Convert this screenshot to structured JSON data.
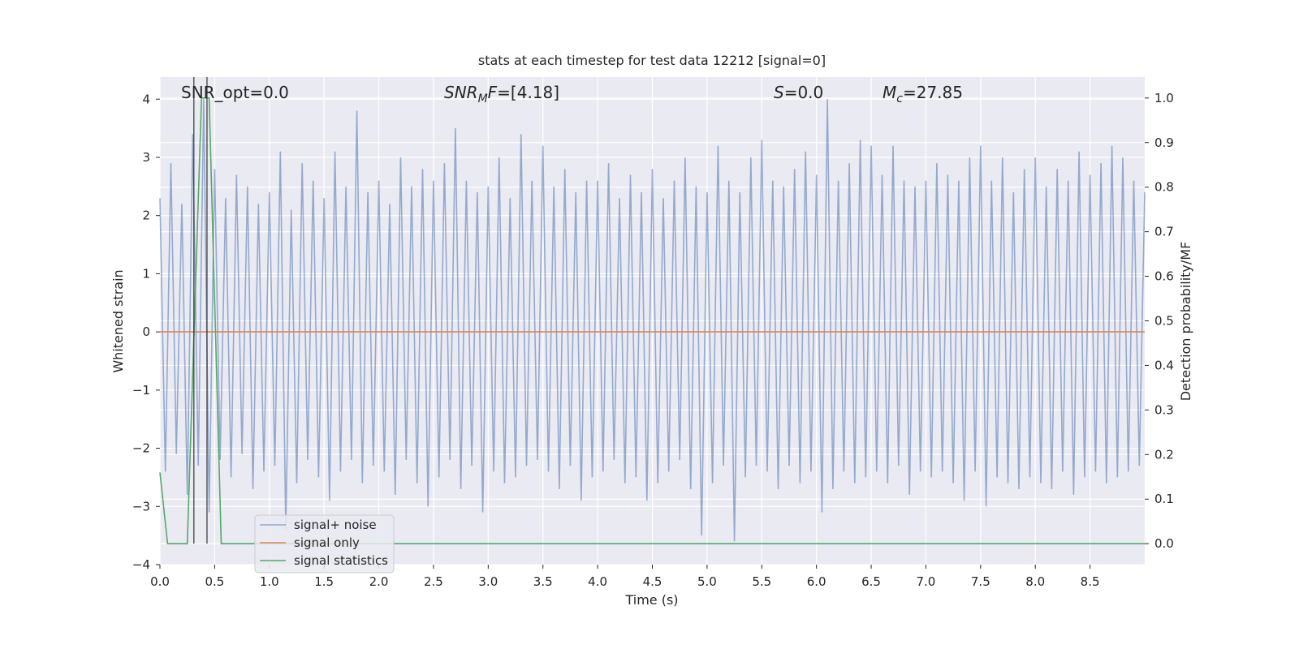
{
  "chart_data": {
    "type": "line",
    "title": "stats at each timestep for test data 12212 [signal=0]",
    "xlabel": "Time (s)",
    "ylabel": "Whitened strain",
    "y2label": "Detection probability/MF",
    "xlim": [
      0,
      9.0
    ],
    "ylim": [
      -4.0,
      4.38
    ],
    "y2lim": [
      -0.047,
      1.047
    ],
    "xticks": [
      {
        "value": 0,
        "label": "0.0"
      },
      {
        "value": 0.5,
        "label": "0.5"
      },
      {
        "value": 1,
        "label": "1.0"
      },
      {
        "value": 1.5,
        "label": "1.5"
      },
      {
        "value": 2,
        "label": "2.0"
      },
      {
        "value": 2.5,
        "label": "2.5"
      },
      {
        "value": 3,
        "label": "3.0"
      },
      {
        "value": 3.5,
        "label": "3.5"
      },
      {
        "value": 4,
        "label": "4.0"
      },
      {
        "value": 4.5,
        "label": "4.5"
      },
      {
        "value": 5,
        "label": "5.0"
      },
      {
        "value": 5.5,
        "label": "5.5"
      },
      {
        "value": 6,
        "label": "6.0"
      },
      {
        "value": 6.5,
        "label": "6.5"
      },
      {
        "value": 7,
        "label": "7.0"
      },
      {
        "value": 7.5,
        "label": "7.5"
      },
      {
        "value": 8,
        "label": "8.0"
      },
      {
        "value": 8.5,
        "label": "8.5"
      }
    ],
    "yticks": [
      {
        "value": -4,
        "label": "−4"
      },
      {
        "value": -3,
        "label": "−3"
      },
      {
        "value": -2,
        "label": "−2"
      },
      {
        "value": -1,
        "label": "−1"
      },
      0,
      1,
      2,
      3,
      4
    ],
    "y2ticks": [
      {
        "value": 0,
        "label": "0.0"
      },
      0.1,
      0.2,
      0.3,
      0.4,
      0.5,
      0.6,
      0.7,
      0.8,
      0.9,
      {
        "value": 1,
        "label": "1.0"
      }
    ],
    "grid": true,
    "legend": "lower left",
    "series": [
      {
        "name": "signal+ noise",
        "color": "#4c72b0",
        "x": [
          0,
          0.05,
          0.1,
          0.15,
          0.2,
          0.25,
          0.3,
          0.35,
          0.4,
          0.45,
          0.5,
          0.55,
          0.6,
          0.65,
          0.7,
          0.75,
          0.8,
          0.85,
          0.9,
          0.95,
          1,
          1.05,
          1.1,
          1.15,
          1.2,
          1.25,
          1.3,
          1.35,
          1.4,
          1.45,
          1.5,
          1.55,
          1.6,
          1.65,
          1.7,
          1.75,
          1.8,
          1.85,
          1.9,
          1.95,
          2,
          2.05,
          2.1,
          2.15,
          2.2,
          2.25,
          2.3,
          2.35,
          2.4,
          2.45,
          2.5,
          2.55,
          2.6,
          2.65,
          2.7,
          2.75,
          2.8,
          2.85,
          2.9,
          2.95,
          3,
          3.05,
          3.1,
          3.15,
          3.2,
          3.25,
          3.3,
          3.35,
          3.4,
          3.45,
          3.5,
          3.55,
          3.6,
          3.65,
          3.7,
          3.75,
          3.8,
          3.85,
          3.9,
          3.95,
          4,
          4.05,
          4.1,
          4.15,
          4.2,
          4.25,
          4.3,
          4.35,
          4.4,
          4.45,
          4.5,
          4.55,
          4.6,
          4.65,
          4.7,
          4.75,
          4.8,
          4.85,
          4.9,
          4.95,
          5,
          5.05,
          5.1,
          5.15,
          5.2,
          5.25,
          5.3,
          5.35,
          5.4,
          5.45,
          5.5,
          5.55,
          5.6,
          5.65,
          5.7,
          5.75,
          5.8,
          5.85,
          5.9,
          5.95,
          6,
          6.05,
          6.1,
          6.15,
          6.2,
          6.25,
          6.3,
          6.35,
          6.4,
          6.45,
          6.5,
          6.55,
          6.6,
          6.65,
          6.7,
          6.75,
          6.8,
          6.85,
          6.9,
          6.95,
          7,
          7.05,
          7.1,
          7.15,
          7.2,
          7.25,
          7.3,
          7.35,
          7.4,
          7.45,
          7.5,
          7.55,
          7.6,
          7.65,
          7.7,
          7.75,
          7.8,
          7.85,
          7.9,
          7.95,
          8,
          8.05,
          8.1,
          8.15,
          8.2,
          8.25,
          8.3,
          8.35,
          8.4,
          8.45,
          8.5,
          8.55,
          8.6,
          8.65,
          8.7,
          8.75,
          8.8,
          8.85,
          8.9,
          8.95,
          9
        ],
        "values": [
          2.3,
          -2.4,
          2.9,
          -2.1,
          2.2,
          -2.8,
          3.4,
          -2.3,
          4.0,
          -3.1,
          2.8,
          -2.2,
          2.3,
          -2.5,
          2.7,
          -2.1,
          2.5,
          -2.7,
          2.2,
          -2.4,
          2.4,
          -2.3,
          3.1,
          -3.4,
          2.1,
          -2.6,
          2.9,
          -2.2,
          2.6,
          -2.5,
          2.3,
          -2.9,
          3.1,
          -2.4,
          2.5,
          -2.2,
          3.8,
          -2.6,
          2.4,
          -2.3,
          2.6,
          -2.4,
          2.2,
          -2.8,
          3.0,
          -2.2,
          2.5,
          -2.6,
          2.8,
          -3.0,
          2.6,
          -2.5,
          2.9,
          -2.2,
          3.5,
          -2.7,
          2.6,
          -2.3,
          2.4,
          -3.1,
          2.5,
          -2.4,
          3.0,
          -2.6,
          2.3,
          -2.5,
          3.4,
          -2.3,
          2.6,
          -2.2,
          3.2,
          -2.4,
          2.5,
          -2.7,
          2.8,
          -2.3,
          2.4,
          -2.9,
          2.6,
          -2.5,
          2.6,
          -2.4,
          2.9,
          -2.2,
          2.3,
          -2.6,
          2.7,
          -2.5,
          2.4,
          -2.9,
          2.8,
          -2.6,
          2.3,
          -2.4,
          2.6,
          -2.2,
          3.0,
          -2.7,
          2.5,
          -3.5,
          2.4,
          -2.6,
          3.2,
          -2.3,
          2.6,
          -3.6,
          2.4,
          -2.5,
          3.0,
          -2.3,
          3.3,
          -2.4,
          2.6,
          -2.7,
          2.5,
          -2.3,
          2.8,
          -2.6,
          3.1,
          -2.4,
          2.7,
          -3.1,
          4.0,
          -2.7,
          2.6,
          -2.4,
          2.9,
          -2.6,
          3.3,
          -2.5,
          3.2,
          -2.4,
          2.7,
          -2.6,
          3.2,
          -2.3,
          2.6,
          -2.8,
          2.5,
          -2.4,
          2.6,
          -2.5,
          2.9,
          -2.4,
          2.7,
          -2.6,
          2.6,
          -2.9,
          3.0,
          -2.4,
          3.2,
          -3.0,
          2.6,
          -2.5,
          3.0,
          -2.6,
          2.4,
          -2.7,
          2.8,
          -2.5,
          3.0,
          -2.6,
          2.5,
          -2.7,
          2.8,
          -2.4,
          2.6,
          -2.8,
          3.1,
          -2.5,
          2.7,
          -2.4,
          2.9,
          -2.6,
          3.2,
          -2.5,
          3.0,
          -2.4,
          2.6,
          -2.3,
          2.4
        ]
      },
      {
        "name": "signal only",
        "color": "#dd8452",
        "x": [
          0,
          9.0
        ],
        "values": [
          0,
          0
        ]
      },
      {
        "name": "signal statistics",
        "color": "#55a868",
        "axis": "y2",
        "x": [
          0,
          0.07,
          0.25,
          0.38,
          0.45,
          0.56,
          9.0
        ],
        "values": [
          0.16,
          0,
          0,
          1.0,
          1.0,
          0,
          0
        ]
      }
    ],
    "vlines": {
      "x": [
        0.31,
        0.43
      ],
      "color": "#333333"
    },
    "annotations": [
      [
        {
          "text": "SNR_opt=0.0"
        }
      ],
      [
        {
          "text": "SNR",
          "italic": true
        },
        {
          "text": "M",
          "italic": true,
          "sub": true
        },
        {
          "text": "F",
          "italic": true
        },
        {
          "text": "=[4.18]"
        }
      ],
      [
        {
          "text": "S",
          "italic": true
        },
        {
          "text": "=0.0"
        }
      ],
      [
        {
          "text": "M",
          "italic": true
        },
        {
          "text": "c",
          "italic": true,
          "sub": true
        },
        {
          "text": "=27.85"
        }
      ]
    ]
  }
}
